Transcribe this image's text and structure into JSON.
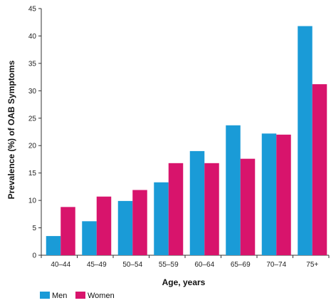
{
  "chart_data": {
    "type": "bar",
    "categories": [
      "40–44",
      "45–49",
      "50–54",
      "55–59",
      "60–64",
      "65–69",
      "70–74",
      "75+"
    ],
    "series": [
      {
        "name": "Men",
        "color": "#1a9bd7",
        "values": [
          3.5,
          6.2,
          9.9,
          13.3,
          19.0,
          23.7,
          22.2,
          41.8
        ]
      },
      {
        "name": "Women",
        "color": "#d8146c",
        "values": [
          8.8,
          10.7,
          11.9,
          16.8,
          16.8,
          17.6,
          22.0,
          31.2
        ]
      }
    ],
    "xlabel": "Age, years",
    "ylabel": "Prevalence (%) of OAB Symptoms",
    "ylim": [
      0,
      45
    ],
    "yticks": [
      "0",
      "5",
      "10",
      "15",
      "20",
      "25",
      "30",
      "35",
      "40",
      "45"
    ],
    "grid": false,
    "legend_position": "bottom-left"
  }
}
